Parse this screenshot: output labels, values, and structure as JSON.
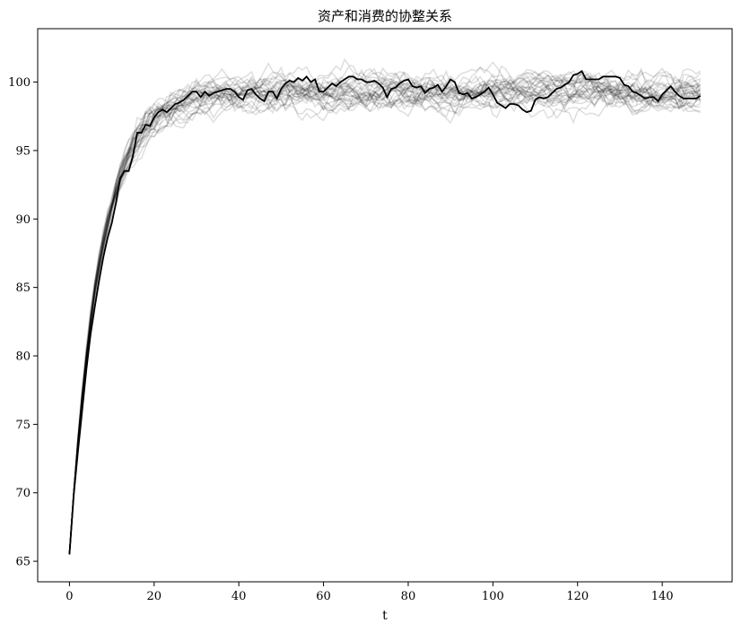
{
  "chart_data": {
    "type": "line",
    "title": "资产和消费的协整关系",
    "xlabel": "t",
    "ylabel": "",
    "xlim": [
      -7.5,
      156.5
    ],
    "ylim": [
      63.5,
      103.9
    ],
    "xticks": [
      0,
      20,
      40,
      60,
      80,
      100,
      120,
      140
    ],
    "yticks": [
      65,
      70,
      75,
      80,
      85,
      90,
      95,
      100
    ],
    "grid": false,
    "n_points": 150,
    "background_series_count": 30,
    "background_color": "#000000",
    "background_opacity": 0.13,
    "highlighted_color": "#000000",
    "highlighted_series": {
      "x": [
        0,
        1,
        2,
        3,
        4,
        5,
        6,
        7,
        8,
        9,
        10,
        11,
        12,
        13,
        14,
        15,
        16,
        17,
        18,
        19,
        20,
        21,
        22,
        23,
        24,
        25,
        26,
        27,
        28,
        29,
        30,
        31,
        32,
        33,
        34,
        35,
        36,
        37,
        38,
        39,
        40,
        41,
        42,
        43,
        44,
        45,
        46,
        47,
        48,
        49,
        50,
        51,
        52,
        53,
        54,
        55,
        56,
        57,
        58,
        59,
        60,
        61,
        62,
        63,
        64,
        65,
        66,
        67,
        68,
        69,
        70,
        71,
        72,
        73,
        74,
        75,
        76,
        77,
        78,
        79,
        80,
        81,
        82,
        83,
        84,
        85,
        86,
        87,
        88,
        89,
        90,
        91,
        92,
        93,
        94,
        95,
        96,
        97,
        98,
        99,
        100,
        101,
        102,
        103,
        104,
        105,
        106,
        107,
        108,
        109,
        110,
        111,
        112,
        113,
        114,
        115,
        116,
        117,
        118,
        119,
        120,
        121,
        122,
        123,
        124,
        125,
        126,
        127,
        128,
        129,
        130,
        131,
        132,
        133,
        134,
        135,
        136,
        137,
        138,
        139,
        140,
        141,
        142,
        143,
        144,
        145,
        146,
        147,
        148,
        149
      ],
      "y": [
        65.5,
        69.8,
        73.0,
        76.0,
        79.0,
        81.6,
        83.6,
        85.5,
        87.2,
        88.6,
        89.7,
        91.2,
        93.0,
        93.5,
        93.5,
        94.6,
        96.3,
        96.3,
        96.9,
        96.8,
        97.4,
        97.8,
        98.0,
        97.8,
        98.1,
        98.4,
        98.5,
        98.7,
        99.0,
        99.3,
        99.3,
        98.9,
        99.3,
        99.0,
        99.2,
        99.3,
        99.4,
        99.5,
        99.5,
        99.3,
        98.9,
        98.7,
        99.4,
        99.5,
        99.1,
        98.8,
        98.6,
        99.3,
        99.3,
        98.8,
        99.5,
        99.9,
        100.1,
        100.0,
        100.3,
        100.1,
        100.4,
        100.0,
        100.2,
        99.3,
        99.3,
        99.6,
        99.9,
        99.7,
        100.0,
        100.2,
        100.4,
        100.4,
        100.2,
        100.2,
        100.0,
        100.0,
        100.1,
        99.9,
        99.6,
        98.9,
        99.5,
        99.6,
        99.9,
        100.1,
        100.2,
        99.7,
        99.6,
        99.7,
        99.2,
        99.5,
        99.6,
        99.8,
        99.3,
        99.7,
        100.2,
        100.0,
        99.2,
        99.1,
        99.2,
        98.8,
        98.9,
        99.1,
        99.3,
        99.6,
        99.1,
        98.5,
        98.3,
        98.1,
        98.4,
        98.4,
        98.3,
        98.0,
        97.8,
        97.9,
        98.7,
        98.9,
        98.8,
        98.9,
        99.2,
        99.5,
        99.6,
        99.8,
        100.0,
        100.5,
        100.6,
        100.8,
        100.2,
        100.2,
        100.2,
        100.2,
        100.4,
        100.4,
        100.4,
        100.4,
        100.3,
        99.8,
        99.7,
        99.3,
        99.2,
        99.0,
        98.8,
        98.9,
        98.9,
        98.6,
        99.1,
        99.4,
        99.7,
        99.3,
        99.0,
        98.8,
        98.8,
        98.8,
        98.8,
        99.0
      ]
    }
  }
}
